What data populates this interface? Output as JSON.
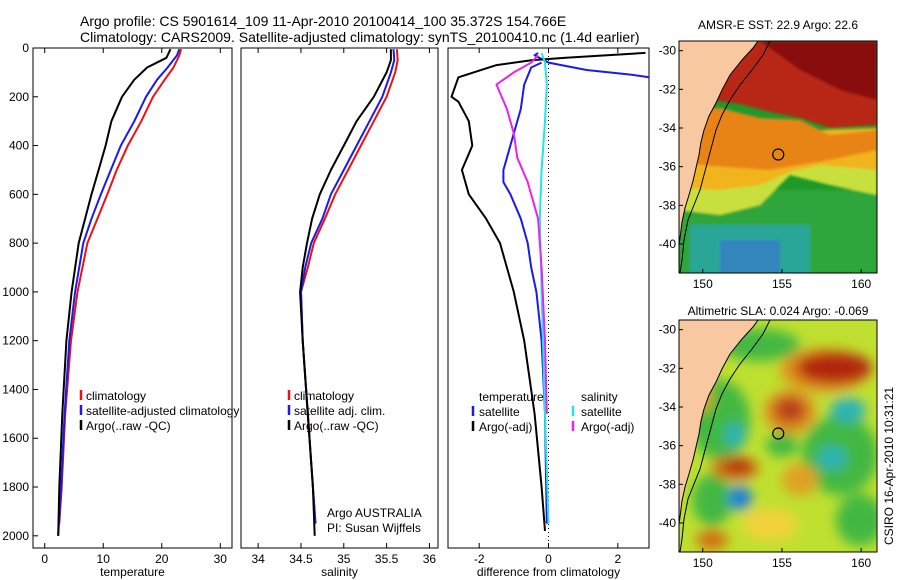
{
  "header": {
    "line1": "Argo profile: CS 5901614_109 11-Apr-2010 20100414_100 35.372S 154.766E",
    "line2": "Climatology: CARS2009. Satellite-adjusted climatology: synTS_20100410.nc (1.4d earlier)"
  },
  "stamp": "CSIRO 16-Apr-2010 10:31:21",
  "colors": {
    "climatology": "#ee1111",
    "satellite": "#1a1aee",
    "argo": "#000000",
    "satellite_salinity": "#22e6e6",
    "argo_adj_salinity": "#ee22ee",
    "land": "#f8c8a0"
  },
  "chart_data": [
    {
      "id": "temperature",
      "type": "line",
      "xlabel": "temperature",
      "ylabel": "",
      "xlim": [
        -2,
        32
      ],
      "ylim": [
        2050,
        0
      ],
      "xticks": [
        0,
        10,
        20,
        30
      ],
      "yticks": [
        0,
        200,
        400,
        600,
        800,
        1000,
        1200,
        1400,
        1600,
        1800,
        2000
      ],
      "legend": [
        "climatology",
        "satellite-adjusted climatology",
        "Argo(..raw -QC)"
      ],
      "series": [
        {
          "name": "climatology",
          "color": "climatology",
          "x": [
            23.3,
            23.0,
            22.0,
            20.5,
            18.5,
            16.5,
            14.2,
            12.3,
            10.7,
            9.0,
            7.3,
            5.6,
            4.5,
            3.5,
            2.9,
            2.5
          ],
          "y": [
            5,
            30,
            80,
            130,
            200,
            300,
            400,
            500,
            600,
            700,
            800,
            1000,
            1200,
            1500,
            1800,
            1950
          ]
        },
        {
          "name": "satellite-adjusted climatology",
          "color": "satellite",
          "x": [
            23.0,
            22.6,
            21.0,
            19.2,
            17.3,
            15.3,
            13.0,
            11.3,
            9.6,
            8.0,
            6.6,
            5.2,
            4.2,
            3.4,
            2.8,
            2.3
          ],
          "y": [
            5,
            30,
            80,
            130,
            200,
            300,
            400,
            500,
            600,
            700,
            800,
            1000,
            1200,
            1500,
            1800,
            2000
          ]
        },
        {
          "name": "Argo(..raw -QC)",
          "color": "argo",
          "x": [
            21.5,
            20.8,
            17.5,
            15.3,
            13.2,
            11.4,
            10.4,
            9.2,
            8.0,
            6.9,
            5.8,
            4.6,
            3.7,
            3.0,
            2.5,
            2.3
          ],
          "y": [
            5,
            40,
            80,
            130,
            200,
            300,
            400,
            500,
            600,
            700,
            800,
            1000,
            1200,
            1500,
            1800,
            2000
          ]
        }
      ]
    },
    {
      "id": "salinity",
      "type": "line",
      "xlabel": "salinity",
      "ylabel": "",
      "xlim": [
        33.8,
        36.1
      ],
      "ylim": [
        2050,
        0
      ],
      "xticks": [
        34,
        34.5,
        35,
        35.5,
        36
      ],
      "yticks": [],
      "legend": [
        "climatology",
        "satellite adj. clim.",
        "Argo(..raw -QC)"
      ],
      "annotation": [
        "Argo AUSTRALIA",
        "PI: Susan Wijffels"
      ],
      "series": [
        {
          "name": "climatology",
          "color": "climatology",
          "x": [
            35.62,
            35.63,
            35.6,
            35.5,
            35.35,
            35.2,
            35.05,
            34.9,
            34.78,
            34.65,
            34.58,
            34.5,
            34.52,
            34.58,
            34.64,
            34.67
          ],
          "y": [
            5,
            50,
            100,
            200,
            300,
            400,
            500,
            600,
            700,
            800,
            900,
            1000,
            1200,
            1500,
            1800,
            1950
          ]
        },
        {
          "name": "satellite adj. clim.",
          "color": "satellite",
          "x": [
            35.58,
            35.59,
            35.55,
            35.45,
            35.3,
            35.15,
            35.0,
            34.85,
            34.75,
            34.62,
            34.55,
            34.5,
            34.52,
            34.58,
            34.64,
            34.67
          ],
          "y": [
            5,
            50,
            100,
            200,
            300,
            400,
            500,
            600,
            700,
            800,
            900,
            1000,
            1200,
            1500,
            1800,
            1950
          ]
        },
        {
          "name": "Argo(..raw -QC)",
          "color": "argo",
          "x": [
            35.55,
            35.55,
            35.5,
            35.35,
            35.15,
            35.0,
            34.85,
            34.72,
            34.63,
            34.57,
            34.52,
            34.49,
            34.52,
            34.58,
            34.64,
            34.66
          ],
          "y": [
            5,
            50,
            100,
            200,
            300,
            400,
            500,
            600,
            700,
            800,
            900,
            1000,
            1200,
            1500,
            1800,
            2000
          ]
        }
      ]
    },
    {
      "id": "difference",
      "type": "line",
      "xlabel": "difference from climatology",
      "ylabel": "",
      "xlim": [
        -2.9,
        2.9
      ],
      "ylim": [
        2050,
        0
      ],
      "xticks": [
        -2,
        0,
        2
      ],
      "yticks": [],
      "legend_left": [
        "temperature",
        "satellite",
        "Argo(-adj)"
      ],
      "legend_right": [
        "salinity",
        "satellite",
        "Argo(-adj)"
      ],
      "series": [
        {
          "name": "temperature satellite",
          "color": "satellite",
          "x": [
            -0.3,
            -0.4,
            0.0,
            1.1,
            2.4,
            2.9
          ],
          "y": [
            20,
            30,
            60,
            90,
            110,
            120
          ]
        },
        {
          "name": "temperature satellite deep",
          "color": "satellite",
          "x": [
            -0.2,
            -0.5,
            -0.7,
            -0.8,
            -1.0,
            -1.2,
            -1.3,
            -1.3,
            -1.1,
            -0.8,
            -0.6,
            -0.5,
            -0.35,
            -0.2,
            -0.1,
            -0.05
          ],
          "y": [
            60,
            80,
            150,
            250,
            350,
            450,
            500,
            550,
            600,
            700,
            800,
            900,
            1000,
            1200,
            1500,
            1950
          ]
        },
        {
          "name": "temperature Argo(-adj)",
          "color": "argo",
          "x": [
            2.8,
            0.5,
            -0.5,
            -1.5,
            -2.6,
            -2.8,
            -2.6,
            -2.3,
            -2.2,
            -2.5,
            -2.3,
            -1.8,
            -1.4,
            -1.2,
            -1.0,
            -0.7,
            -0.4,
            -0.2,
            -0.1
          ],
          "y": [
            20,
            40,
            50,
            70,
            120,
            200,
            220,
            300,
            400,
            500,
            600,
            700,
            800,
            900,
            1000,
            1200,
            1500,
            1800,
            1980
          ]
        },
        {
          "name": "salinity satellite",
          "color": "satellite_salinity",
          "x": [
            -0.2,
            -0.1,
            -0.05,
            -0.1,
            -0.2,
            -0.25,
            -0.2,
            -0.1,
            0.0
          ],
          "y": [
            20,
            60,
            150,
            300,
            500,
            700,
            1000,
            1500,
            1950
          ]
        },
        {
          "name": "salinity Argo(-adj)",
          "color": "argo_adj_salinity",
          "x": [
            -0.3,
            -0.5,
            -1.0,
            -1.5,
            -1.2,
            -1.0,
            -0.9,
            -0.6,
            -0.3,
            -0.2,
            -0.1,
            -0.05
          ],
          "y": [
            30,
            60,
            100,
            150,
            250,
            350,
            450,
            550,
            700,
            900,
            1200,
            1500
          ]
        }
      ]
    },
    {
      "id": "sst_map",
      "type": "heatmap",
      "title": "AMSR-E SST: 22.9 Argo: 22.6",
      "xlim": [
        148.5,
        161
      ],
      "ylim": [
        -41.5,
        -29.5
      ],
      "xticks": [
        150,
        155,
        160
      ],
      "yticks": [
        -30,
        -32,
        -34,
        -36,
        -38,
        -40
      ],
      "argo_position": {
        "lon": 154.766,
        "lat": -35.372
      }
    },
    {
      "id": "sla_map",
      "type": "heatmap",
      "title": "Altimetric SLA: 0.024 Argo: -0.069",
      "xlim": [
        148.5,
        161
      ],
      "ylim": [
        -41.5,
        -29.5
      ],
      "xticks": [
        150,
        155,
        160
      ],
      "yticks": [
        -30,
        -32,
        -34,
        -36,
        -38,
        -40
      ],
      "argo_position": {
        "lon": 154.766,
        "lat": -35.372
      }
    }
  ]
}
